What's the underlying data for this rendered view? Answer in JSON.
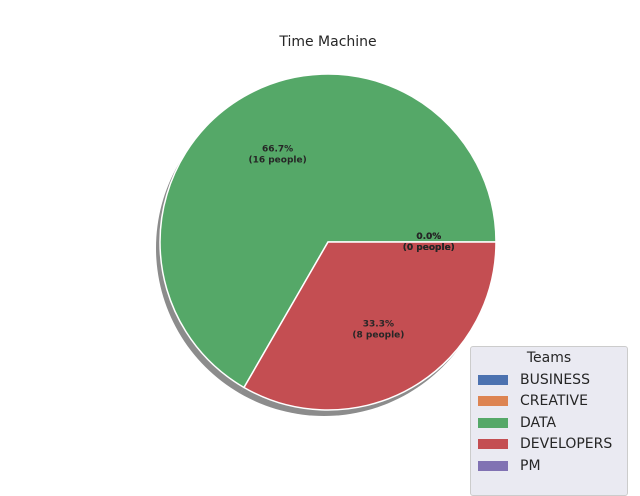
{
  "chart_data": {
    "type": "pie",
    "title": "Time Machine",
    "legend_title": "Teams",
    "legend_placement": "lower-right",
    "shadow": true,
    "start_angle_deg": 0,
    "slices": [
      {
        "label": "BUSINESS",
        "value": 0,
        "percent": "0.0%",
        "count": "(0 people)",
        "color": "#4c72b0"
      },
      {
        "label": "CREATIVE",
        "value": 0,
        "percent": "0.0%",
        "count": "(0 people)",
        "color": "#dd8452"
      },
      {
        "label": "DATA",
        "value": 16,
        "percent": "66.7%",
        "count": "(16 people)",
        "color": "#55a868"
      },
      {
        "label": "DEVELOPERS",
        "value": 8,
        "percent": "33.3%",
        "count": "(8 people)",
        "color": "#c44e52"
      },
      {
        "label": "PM",
        "value": 0,
        "percent": "0.0%",
        "count": "(0 people)",
        "color": "#8172b3"
      }
    ]
  }
}
